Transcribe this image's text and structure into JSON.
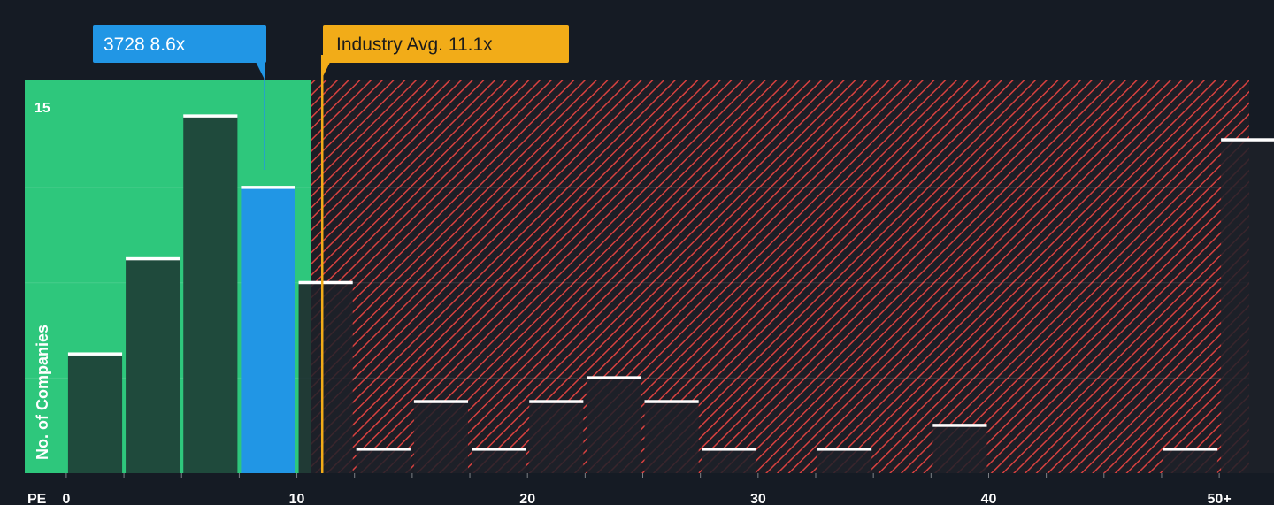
{
  "chart_data": {
    "type": "bar",
    "xlabel": "PE",
    "ylabel": "No. of Companies",
    "x_ticks": [
      "0",
      "10",
      "20",
      "30",
      "40",
      "50+"
    ],
    "y_ticks": [
      "15"
    ],
    "ylim": [
      0,
      16.5
    ],
    "x_range": [
      -1.8,
      51.3
    ],
    "bin_width": 2.5,
    "bins": [
      {
        "start": 0,
        "count": 5
      },
      {
        "start": 2.5,
        "count": 9
      },
      {
        "start": 5,
        "count": 15
      },
      {
        "start": 7.5,
        "count": 12
      },
      {
        "start": 10,
        "count": 8
      },
      {
        "start": 12.5,
        "count": 1
      },
      {
        "start": 15,
        "count": 3
      },
      {
        "start": 17.5,
        "count": 1
      },
      {
        "start": 20,
        "count": 3
      },
      {
        "start": 22.5,
        "count": 4
      },
      {
        "start": 25,
        "count": 3
      },
      {
        "start": 27.5,
        "count": 1
      },
      {
        "start": 30,
        "count": 0
      },
      {
        "start": 32.5,
        "count": 1
      },
      {
        "start": 35,
        "count": 0
      },
      {
        "start": 37.5,
        "count": 2
      },
      {
        "start": 40,
        "count": 0
      },
      {
        "start": 42.5,
        "count": 0
      },
      {
        "start": 45,
        "count": 0
      },
      {
        "start": 47.5,
        "count": 1
      },
      {
        "start": 50,
        "count": 14
      }
    ],
    "highlight": {
      "label": "3728 8.6x",
      "value": 8.6
    },
    "industry_avg": {
      "label": "Industry Avg. 11.1x",
      "value": 11.1
    },
    "fair_zone_end": 10.6,
    "grid": true,
    "colors": {
      "background": "#151b24",
      "fair_zone": "#2ec77c",
      "overvalued_hatch": "#e24a4a",
      "bar": "#1f4a3c",
      "bar_overvalued": "#1d2129",
      "highlight_bar": "#2196e5",
      "bar_cap": "#ffffff",
      "industry_line": "#f2ac18",
      "highlight_callout": "#2196e5",
      "industry_callout": "#f2ac18"
    }
  }
}
